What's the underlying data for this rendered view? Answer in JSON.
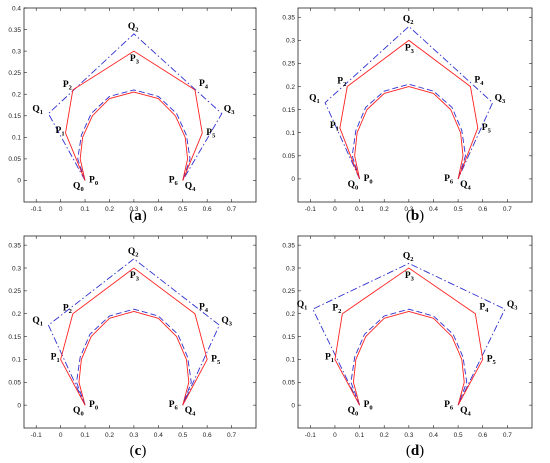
{
  "figure": {
    "colors": {
      "p_polygon": "#ff2020",
      "q_polygon": "#3030d0",
      "curve_solid": "#ff2020",
      "curve_dashed": "#3030d0",
      "axes": "#222222",
      "background": "#ffffff"
    }
  },
  "chart_data": [
    {
      "type": "line",
      "caption": "(a)",
      "caption_letter": "a",
      "xlim": [
        -0.15,
        0.8
      ],
      "ylim": [
        -0.05,
        0.4
      ],
      "xticks": [
        -0.1,
        0,
        0.1,
        0.2,
        0.3,
        0.4,
        0.5,
        0.6,
        0.7
      ],
      "xtick_labels": [
        "-0.1",
        "0",
        "0.1",
        "0.2",
        "0.3",
        "0.4",
        "0.5",
        "0.6",
        "0.7"
      ],
      "yticks": [
        0,
        0.05,
        0.1,
        0.15,
        0.2,
        0.25,
        0.3,
        0.35,
        0.4
      ],
      "ytick_labels": [
        "0",
        "0.05",
        "0.1",
        "0.15",
        "0.2",
        "0.25",
        "0.3",
        "0.35",
        "0.4"
      ],
      "grid": false,
      "legend": "none",
      "p_points": [
        {
          "name": "P",
          "sub": "0",
          "x": 0.1,
          "y": 0.0
        },
        {
          "name": "P",
          "sub": "1",
          "x": 0.02,
          "y": 0.11
        },
        {
          "name": "P",
          "sub": "2",
          "x": 0.05,
          "y": 0.21
        },
        {
          "name": "P",
          "sub": "3",
          "x": 0.3,
          "y": 0.3
        },
        {
          "name": "P",
          "sub": "4",
          "x": 0.55,
          "y": 0.21
        },
        {
          "name": "P",
          "sub": "5",
          "x": 0.58,
          "y": 0.11
        },
        {
          "name": "P",
          "sub": "6",
          "x": 0.5,
          "y": 0.0
        }
      ],
      "q_points": [
        {
          "name": "Q",
          "sub": "0",
          "x": 0.1,
          "y": 0.0
        },
        {
          "name": "Q",
          "sub": "1",
          "x": -0.05,
          "y": 0.155
        },
        {
          "name": "Q",
          "sub": "2",
          "x": 0.3,
          "y": 0.34
        },
        {
          "name": "Q",
          "sub": "3",
          "x": 0.66,
          "y": 0.155
        },
        {
          "name": "Q",
          "sub": "4",
          "x": 0.5,
          "y": 0.0
        }
      ],
      "curves": [
        {
          "style": "solid",
          "points": [
            [
              0.1,
              0.0
            ],
            [
              0.08,
              0.05
            ],
            [
              0.09,
              0.1
            ],
            [
              0.13,
              0.15
            ],
            [
              0.2,
              0.19
            ],
            [
              0.3,
              0.205
            ],
            [
              0.4,
              0.19
            ],
            [
              0.47,
              0.15
            ],
            [
              0.51,
              0.1
            ],
            [
              0.52,
              0.05
            ],
            [
              0.5,
              0.0
            ]
          ]
        },
        {
          "style": "dashed",
          "points": [
            [
              0.1,
              0.0
            ],
            [
              0.07,
              0.05
            ],
            [
              0.085,
              0.105
            ],
            [
              0.125,
              0.155
            ],
            [
              0.2,
              0.195
            ],
            [
              0.3,
              0.21
            ],
            [
              0.4,
              0.195
            ],
            [
              0.475,
              0.155
            ],
            [
              0.515,
              0.105
            ],
            [
              0.53,
              0.05
            ],
            [
              0.5,
              0.0
            ]
          ]
        }
      ]
    },
    {
      "type": "line",
      "caption": "(b)",
      "caption_letter": "b",
      "xlim": [
        -0.15,
        0.8
      ],
      "ylim": [
        -0.05,
        0.37
      ],
      "xticks": [
        -0.1,
        0,
        0.1,
        0.2,
        0.3,
        0.4,
        0.5,
        0.6,
        0.7
      ],
      "xtick_labels": [
        "-0.1",
        "0",
        "0.1",
        "0.2",
        "0.3",
        "0.4",
        "0.5",
        "0.6",
        "0.7"
      ],
      "yticks": [
        0,
        0.05,
        0.1,
        0.15,
        0.2,
        0.25,
        0.3,
        0.35
      ],
      "ytick_labels": [
        "0",
        "0.05",
        "0.1",
        "0.15",
        "0.2",
        "0.25",
        "0.3",
        "0.35"
      ],
      "grid": false,
      "legend": "none",
      "p_points": [
        {
          "name": "P",
          "sub": "0",
          "x": 0.1,
          "y": 0.0
        },
        {
          "name": "P",
          "sub": "1",
          "x": 0.02,
          "y": 0.11
        },
        {
          "name": "P",
          "sub": "2",
          "x": 0.05,
          "y": 0.2
        },
        {
          "name": "P",
          "sub": "3",
          "x": 0.3,
          "y": 0.3
        },
        {
          "name": "P",
          "sub": "4",
          "x": 0.55,
          "y": 0.2
        },
        {
          "name": "P",
          "sub": "5",
          "x": 0.58,
          "y": 0.11
        },
        {
          "name": "P",
          "sub": "6",
          "x": 0.5,
          "y": 0.0
        }
      ],
      "q_points": [
        {
          "name": "Q",
          "sub": "0",
          "x": 0.1,
          "y": 0.0
        },
        {
          "name": "Q",
          "sub": "1",
          "x": -0.04,
          "y": 0.165
        },
        {
          "name": "Q",
          "sub": "2",
          "x": 0.3,
          "y": 0.33
        },
        {
          "name": "Q",
          "sub": "3",
          "x": 0.64,
          "y": 0.165
        },
        {
          "name": "Q",
          "sub": "4",
          "x": 0.5,
          "y": 0.0
        }
      ],
      "curves": [
        {
          "style": "solid",
          "points": [
            [
              0.1,
              0.0
            ],
            [
              0.08,
              0.05
            ],
            [
              0.09,
              0.1
            ],
            [
              0.13,
              0.15
            ],
            [
              0.2,
              0.185
            ],
            [
              0.3,
              0.2
            ],
            [
              0.4,
              0.185
            ],
            [
              0.47,
              0.15
            ],
            [
              0.51,
              0.1
            ],
            [
              0.52,
              0.05
            ],
            [
              0.5,
              0.0
            ]
          ]
        },
        {
          "style": "dashed",
          "points": [
            [
              0.1,
              0.0
            ],
            [
              0.07,
              0.05
            ],
            [
              0.085,
              0.105
            ],
            [
              0.125,
              0.155
            ],
            [
              0.2,
              0.19
            ],
            [
              0.3,
              0.205
            ],
            [
              0.4,
              0.19
            ],
            [
              0.475,
              0.155
            ],
            [
              0.515,
              0.105
            ],
            [
              0.53,
              0.05
            ],
            [
              0.5,
              0.0
            ]
          ]
        }
      ]
    },
    {
      "type": "line",
      "caption": "(c)",
      "caption_letter": "c",
      "xlim": [
        -0.15,
        0.8
      ],
      "ylim": [
        -0.05,
        0.37
      ],
      "xticks": [
        -0.1,
        0,
        0.1,
        0.2,
        0.3,
        0.4,
        0.5,
        0.6,
        0.7
      ],
      "xtick_labels": [
        "-0.1",
        "0",
        "0.1",
        "0.2",
        "0.3",
        "0.4",
        "0.5",
        "0.6",
        "0.7"
      ],
      "yticks": [
        0,
        0.05,
        0.1,
        0.15,
        0.2,
        0.25,
        0.3,
        0.35
      ],
      "ytick_labels": [
        "0",
        "0.05",
        "0.1",
        "0.15",
        "0.2",
        "0.25",
        "0.3",
        "0.35"
      ],
      "grid": false,
      "legend": "none",
      "p_points": [
        {
          "name": "P",
          "sub": "0",
          "x": 0.1,
          "y": 0.0
        },
        {
          "name": "P",
          "sub": "1",
          "x": 0.0,
          "y": 0.1
        },
        {
          "name": "P",
          "sub": "2",
          "x": 0.05,
          "y": 0.2
        },
        {
          "name": "P",
          "sub": "3",
          "x": 0.3,
          "y": 0.3
        },
        {
          "name": "P",
          "sub": "4",
          "x": 0.55,
          "y": 0.2
        },
        {
          "name": "P",
          "sub": "5",
          "x": 0.6,
          "y": 0.1
        },
        {
          "name": "P",
          "sub": "6",
          "x": 0.5,
          "y": 0.0
        }
      ],
      "q_points": [
        {
          "name": "Q",
          "sub": "0",
          "x": 0.1,
          "y": 0.0
        },
        {
          "name": "Q",
          "sub": "1",
          "x": -0.05,
          "y": 0.175
        },
        {
          "name": "Q",
          "sub": "2",
          "x": 0.3,
          "y": 0.32
        },
        {
          "name": "Q",
          "sub": "3",
          "x": 0.65,
          "y": 0.175
        },
        {
          "name": "Q",
          "sub": "4",
          "x": 0.5,
          "y": 0.0
        }
      ],
      "curves": [
        {
          "style": "solid",
          "points": [
            [
              0.1,
              0.0
            ],
            [
              0.075,
              0.05
            ],
            [
              0.085,
              0.1
            ],
            [
              0.125,
              0.15
            ],
            [
              0.2,
              0.19
            ],
            [
              0.3,
              0.205
            ],
            [
              0.4,
              0.19
            ],
            [
              0.475,
              0.15
            ],
            [
              0.515,
              0.1
            ],
            [
              0.525,
              0.05
            ],
            [
              0.5,
              0.0
            ]
          ]
        },
        {
          "style": "dashed",
          "points": [
            [
              0.1,
              0.0
            ],
            [
              0.065,
              0.05
            ],
            [
              0.08,
              0.105
            ],
            [
              0.12,
              0.155
            ],
            [
              0.2,
              0.195
            ],
            [
              0.3,
              0.21
            ],
            [
              0.4,
              0.195
            ],
            [
              0.48,
              0.155
            ],
            [
              0.52,
              0.105
            ],
            [
              0.535,
              0.05
            ],
            [
              0.5,
              0.0
            ]
          ]
        }
      ]
    },
    {
      "type": "line",
      "caption": "(d)",
      "caption_letter": "d",
      "xlim": [
        -0.15,
        0.8
      ],
      "ylim": [
        -0.05,
        0.37
      ],
      "xticks": [
        -0.1,
        0,
        0.1,
        0.2,
        0.3,
        0.4,
        0.5,
        0.6,
        0.7
      ],
      "xtick_labels": [
        "-0.1",
        "0",
        "0.1",
        "0.2",
        "0.3",
        "0.4",
        "0.5",
        "0.6",
        "0.7"
      ],
      "yticks": [
        0,
        0.05,
        0.1,
        0.15,
        0.2,
        0.25,
        0.3,
        0.35
      ],
      "ytick_labels": [
        "0",
        "0.05",
        "0.1",
        "0.15",
        "0.2",
        "0.25",
        "0.3",
        "0.35"
      ],
      "grid": false,
      "legend": "none",
      "p_points": [
        {
          "name": "P",
          "sub": "0",
          "x": 0.1,
          "y": 0.0
        },
        {
          "name": "P",
          "sub": "1",
          "x": 0.0,
          "y": 0.1
        },
        {
          "name": "P",
          "sub": "2",
          "x": 0.03,
          "y": 0.2
        },
        {
          "name": "P",
          "sub": "3",
          "x": 0.3,
          "y": 0.3
        },
        {
          "name": "P",
          "sub": "4",
          "x": 0.57,
          "y": 0.2
        },
        {
          "name": "P",
          "sub": "5",
          "x": 0.6,
          "y": 0.1
        },
        {
          "name": "P",
          "sub": "6",
          "x": 0.5,
          "y": 0.0
        }
      ],
      "q_points": [
        {
          "name": "Q",
          "sub": "0",
          "x": 0.1,
          "y": 0.0
        },
        {
          "name": "Q",
          "sub": "1",
          "x": -0.09,
          "y": 0.21
        },
        {
          "name": "Q",
          "sub": "2",
          "x": 0.3,
          "y": 0.31
        },
        {
          "name": "Q",
          "sub": "3",
          "x": 0.69,
          "y": 0.21
        },
        {
          "name": "Q",
          "sub": "4",
          "x": 0.5,
          "y": 0.0
        }
      ],
      "curves": [
        {
          "style": "solid",
          "points": [
            [
              0.1,
              0.0
            ],
            [
              0.075,
              0.05
            ],
            [
              0.085,
              0.1
            ],
            [
              0.125,
              0.15
            ],
            [
              0.2,
              0.19
            ],
            [
              0.3,
              0.205
            ],
            [
              0.4,
              0.19
            ],
            [
              0.475,
              0.15
            ],
            [
              0.515,
              0.1
            ],
            [
              0.525,
              0.05
            ],
            [
              0.5,
              0.0
            ]
          ]
        },
        {
          "style": "dashed",
          "points": [
            [
              0.1,
              0.0
            ],
            [
              0.065,
              0.05
            ],
            [
              0.08,
              0.105
            ],
            [
              0.12,
              0.155
            ],
            [
              0.2,
              0.195
            ],
            [
              0.3,
              0.21
            ],
            [
              0.4,
              0.195
            ],
            [
              0.48,
              0.155
            ],
            [
              0.52,
              0.105
            ],
            [
              0.535,
              0.05
            ],
            [
              0.5,
              0.0
            ]
          ]
        }
      ]
    }
  ]
}
